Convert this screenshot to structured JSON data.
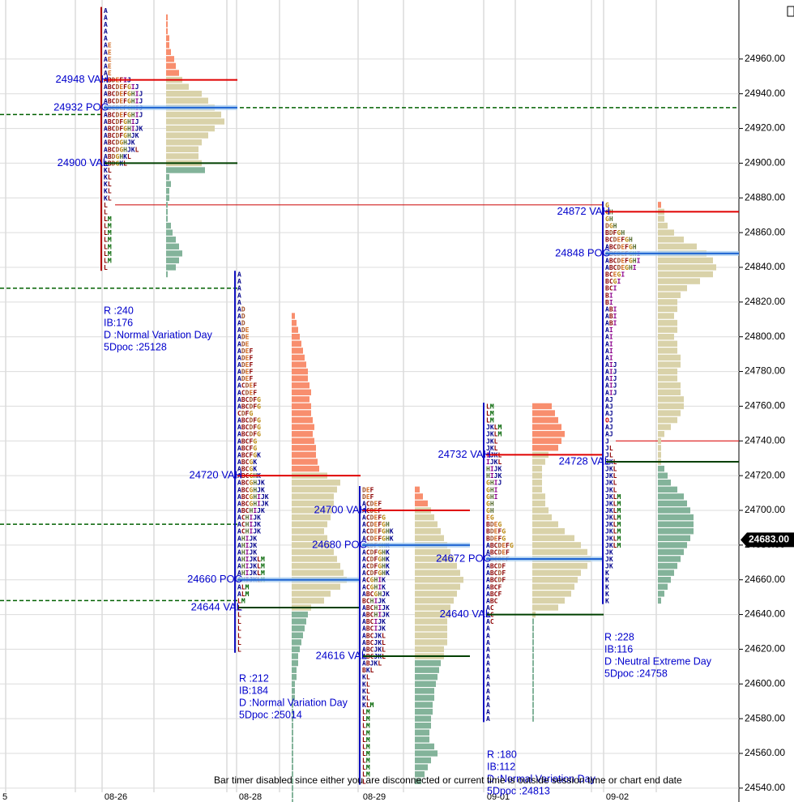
{
  "chart_data": {
    "type": "market_profile",
    "ylim": [
      24532,
      24994
    ],
    "yticks": [
      {
        "value": 24540,
        "label": "24540.00"
      },
      {
        "value": 24560,
        "label": "24560.00"
      },
      {
        "value": 24580,
        "label": "24580.00"
      },
      {
        "value": 24600,
        "label": "24600.00"
      },
      {
        "value": 24620,
        "label": "24620.00"
      },
      {
        "value": 24640,
        "label": "24640.00"
      },
      {
        "value": 24660,
        "label": "24660.00"
      },
      {
        "value": 24680,
        "label": "24680.00"
      },
      {
        "value": 24700,
        "label": "24700.00"
      },
      {
        "value": 24720,
        "label": "24720.00"
      },
      {
        "value": 24740,
        "label": "24740.00"
      },
      {
        "value": 24760,
        "label": "24760.00"
      },
      {
        "value": 24780,
        "label": "24780.00"
      },
      {
        "value": 24800,
        "label": "24800.00"
      },
      {
        "value": 24820,
        "label": "24820.00"
      },
      {
        "value": 24840,
        "label": "24840.00"
      },
      {
        "value": 24860,
        "label": "24860.00"
      },
      {
        "value": 24880,
        "label": "24880.00"
      },
      {
        "value": 24900,
        "label": "24900.00"
      },
      {
        "value": 24920,
        "label": "24920.00"
      },
      {
        "value": 24940,
        "label": "24940.00"
      },
      {
        "value": 24960,
        "label": "24960.00"
      }
    ],
    "grid": true,
    "row_size": 4,
    "x_labels": [
      "5",
      "08-26",
      "08-28",
      "08-29",
      "09-01",
      "09-02"
    ],
    "colors": {
      "above_va": "#f88e6e",
      "value_area": "#d9d2a9",
      "below_va": "#83b39a",
      "level_text": "#0000cc",
      "dashed": "#006000"
    },
    "level_colors": [
      "#e00000",
      "#1e64d2",
      "#004000"
    ],
    "letter_colors": {
      "A": "#00008b",
      "B": "#8b0000",
      "C": "#8b0000",
      "D": "#a0522d",
      "E": "#d2691e",
      "F": "#8b0000",
      "G": "#b8860b",
      "H": "#556b2f",
      "I": "#8b008b",
      "J": "#00008b",
      "K": "#00008b",
      "L": "#8b0000",
      "M": "#006400",
      "O": "#cc0000"
    },
    "sessions": [
      {
        "top": 24988,
        "tpo": [
          "A",
          "A",
          "A",
          "A",
          "A",
          "AE",
          "AE",
          "AE",
          "AE",
          "AE",
          "ABDEFIJ",
          "ABCDEFGIJ",
          "ABCDEFGHIJ",
          "ABCDEFGHIJ",
          "ABCDEFGHIJ",
          "ABCDEFGHIJ",
          "ABCDFGHIJ",
          "ABCDFGHIJK",
          "ABCDFGHJK",
          "ABCDGHJK",
          "ABCDGHJKL",
          "ABDGHKL",
          "ABDGKL",
          "KL",
          "KL",
          "KL",
          "KL",
          "KL",
          "L",
          "L",
          "LM",
          "LM",
          "LM",
          "LM",
          "LM",
          "LM",
          "LM",
          "L"
        ],
        "volume_top": 24984,
        "volume": [
          1,
          1,
          1,
          2,
          2,
          3,
          5,
          6,
          8,
          10,
          14,
          22,
          26,
          30,
          34,
          36,
          30,
          26,
          22,
          20,
          20,
          22,
          24,
          2,
          3,
          2,
          2,
          1,
          1,
          1,
          3,
          4,
          6,
          8,
          10,
          8,
          6,
          1
        ],
        "levels": [
          {
            "label": "24948 VAH",
            "value": 24948
          },
          {
            "label": "24932 POC",
            "value": 24932
          },
          {
            "label": "24900 VAL",
            "value": 24900
          }
        ]
      },
      {
        "top": 24836,
        "tpo": [
          "A",
          "A",
          "A",
          "A",
          "A",
          "AD",
          "AD",
          "AD",
          "ADE",
          "ADE",
          "ADE",
          "ADEF",
          "ADEF",
          "ADEF",
          "ADEF",
          "ADEF",
          "ACDEF",
          "ACDEF",
          "ABCDFG",
          "ABCDFG",
          "CDFG",
          "ABCDFG",
          "ABCDFG",
          "ABCDFG",
          "ABCFG",
          "ABCFG",
          "ABCFGK",
          "ABCGK",
          "ABCGK",
          "ABCGHK",
          "ABCGHJK",
          "ABCGHJK",
          "ABCGHIJK",
          "ABCGHIJK",
          "ABCHIJK",
          "ACHIJK",
          "ACHIJK",
          "ACHIJK",
          "AHIJK",
          "AHIJK",
          "AHIJK",
          "AHIJKLM",
          "AHIJKLM",
          "AHIJKLM",
          "AHIJKLM",
          "ALM",
          "ALM",
          "LM",
          "L",
          "L",
          "L",
          "L",
          "L",
          "L",
          "L"
        ],
        "volume_top": 24812,
        "volume": [
          2,
          3,
          4,
          5,
          6,
          7,
          8,
          9,
          10,
          10,
          11,
          12,
          11,
          12,
          12,
          13,
          14,
          13,
          14,
          15,
          15,
          16,
          17,
          22,
          30,
          28,
          26,
          26,
          25,
          24,
          22,
          20,
          22,
          24,
          26,
          28,
          30,
          32,
          34,
          30,
          24,
          20,
          12,
          10,
          9,
          8,
          7,
          6,
          5,
          4,
          4,
          3,
          3,
          2,
          2,
          2,
          1,
          1,
          1,
          1,
          1,
          1,
          1,
          1,
          1,
          1,
          1,
          1,
          1,
          1,
          1
        ],
        "levels": [
          {
            "label": "24720 VAH",
            "value": 24720
          },
          {
            "label": "24660 POC",
            "value": 24660
          },
          {
            "label": "24644 VAL",
            "value": 24644
          }
        ]
      },
      {
        "top": 24712,
        "tpo": [
          "DEF",
          "DEF",
          "ACDEF",
          "ACDEF",
          "ACDEFG",
          "ACDEFGH",
          "ACDEFGHK",
          "ACDEFGHK",
          "ACDFGHK",
          "ACDFGHK",
          "ACDFGHK",
          "ACDFGHK",
          "ACDFGHK",
          "ACGHIK",
          "ACGHIK",
          "ABCGHJK",
          "BCHIJK",
          "ABCHIJK",
          "ABCHIJK",
          "ABCIJK",
          "ABCIJK",
          "ABCJKL",
          "ABCJKL",
          "ABCJKL",
          "ABCJKL",
          "ABJKL",
          "BKL",
          "KL",
          "KL",
          "KL",
          "KL",
          "KLM",
          "LM",
          "LM",
          "LM",
          "LM",
          "LM",
          "LM",
          "LM",
          "LM",
          "LM",
          "LM",
          "L"
        ],
        "volume_top": 24712,
        "volume": [
          3,
          5,
          8,
          10,
          12,
          14,
          16,
          18,
          20,
          22,
          24,
          26,
          28,
          30,
          28,
          26,
          24,
          22,
          22,
          20,
          20,
          20,
          20,
          18,
          18,
          16,
          15,
          14,
          13,
          12,
          12,
          11,
          11,
          10,
          10,
          9,
          9,
          12,
          14,
          10,
          8,
          6,
          4
        ],
        "levels": [
          {
            "label": "24700 VAH",
            "value": 24700
          },
          {
            "label": "24680 POC",
            "value": 24680
          },
          {
            "label": "24616 VAL",
            "value": 24616
          }
        ]
      },
      {
        "top": 24760,
        "tpo": [
          "LM",
          "LM",
          "LM",
          "JKLM",
          "JKLM",
          "JKL",
          "JKL",
          "IJKL",
          "IJKL",
          "HIJK",
          "HIJK",
          "GHIJ",
          "GHI",
          "GHI",
          "GH",
          "GH",
          "EG",
          "BDEG",
          "BDEFG",
          "BDEFG",
          "ABCDEFG",
          "ABCDEF",
          "ABCDEF",
          "ABCDF",
          "ABCDF",
          "ABCDF",
          "ABCF",
          "ABCF",
          "ABC",
          "AC",
          "AC",
          "AC",
          "A",
          "A",
          "A",
          "A",
          "A",
          "A",
          "A",
          "A",
          "A",
          "A",
          "A",
          "A",
          "A",
          "A"
        ],
        "volume_top": 24760,
        "volume": [
          12,
          14,
          16,
          18,
          20,
          18,
          16,
          10,
          8,
          6,
          6,
          6,
          6,
          8,
          8,
          10,
          12,
          16,
          20,
          26,
          30,
          34,
          36,
          34,
          30,
          28,
          26,
          24,
          20,
          16,
          2,
          1,
          1,
          1,
          1,
          1,
          1,
          1,
          1,
          1,
          1,
          1,
          1,
          1,
          1,
          1
        ],
        "levels": [
          {
            "label": "24732 VAH",
            "value": 24732
          },
          {
            "label": "24672 POC",
            "value": 24672
          },
          {
            "label": "24640 VAL",
            "value": 24640
          }
        ]
      },
      {
        "top": 24876,
        "tpo": [
          "G",
          "GH",
          "GH",
          "DGH",
          "BDFGH",
          "BCDEFGH",
          "ABCDEFGH",
          "ABCDEFGHI",
          "ABCDEFGHI",
          "ABCDEGHI",
          "BCEGI",
          "BCGI",
          "BCI",
          "BI",
          "BI",
          "ABI",
          "ABI",
          "ABI",
          "AI",
          "AI",
          "AI",
          "AI",
          "AI",
          "AIJ",
          "AIJ",
          "AIJ",
          "AIJ",
          "AIJ",
          "AJ",
          "AJ",
          "AJ",
          "OJ",
          "AJ",
          "AJ",
          "J",
          "JL",
          "JL",
          "JKL",
          "JKL",
          "JKL",
          "JKL",
          "JKL",
          "JKLM",
          "JKLM",
          "JKLM",
          "JKLM",
          "JKLM",
          "JKLM",
          "JKLM",
          "JKLM",
          "JK",
          "JK",
          "JK",
          "K",
          "K",
          "K",
          "K",
          "K"
        ],
        "volume_top": 24876,
        "volume": [
          2,
          4,
          4,
          6,
          10,
          16,
          24,
          30,
          34,
          36,
          34,
          26,
          18,
          14,
          12,
          12,
          10,
          12,
          12,
          10,
          12,
          12,
          14,
          14,
          12,
          12,
          14,
          14,
          16,
          16,
          14,
          12,
          8,
          4,
          2,
          2,
          2,
          2,
          4,
          6,
          8,
          12,
          16,
          18,
          20,
          22,
          22,
          22,
          20,
          18,
          16,
          14,
          12,
          10,
          8,
          6,
          4,
          2
        ],
        "levels": [
          {
            "label": "24872 VAH",
            "value": 24872
          },
          {
            "label": "24848 POC",
            "value": 24848
          },
          {
            "label": "24728 VAL",
            "value": 24728
          }
        ]
      }
    ],
    "dashed_levels": [
      {
        "value": 24932,
        "start_session": 1
      },
      {
        "value": 24928,
        "end_session": 0
      },
      {
        "value": 24828,
        "end_session": 1
      },
      {
        "value": 24692,
        "end_session": 1
      },
      {
        "value": 24648,
        "end_session": 1
      }
    ],
    "extra_lines": [
      {
        "value": 24876,
        "color": "#cc0000"
      },
      {
        "value": 24740,
        "color": "#e00000"
      }
    ],
    "info": [
      [
        "R :240",
        "IB:176",
        "D :Normal Variation Day",
        "5Dpoc :25128"
      ],
      [
        "R :212",
        "IB:184",
        "D :Normal Variation Day",
        "5Dpoc :25014"
      ],
      [
        "R :180",
        "IB:112",
        "D :Normal Variation Day",
        "5Dpoc :24813"
      ],
      [
        "R :228",
        "IB:116",
        "D :Neutral Extreme Day",
        "5Dpoc :24758"
      ]
    ],
    "last_price": {
      "value": 24683,
      "label": "24683.00"
    },
    "status_message": "Bar timer disabled since either you are disconnected or current time is outside session time or chart end date"
  }
}
